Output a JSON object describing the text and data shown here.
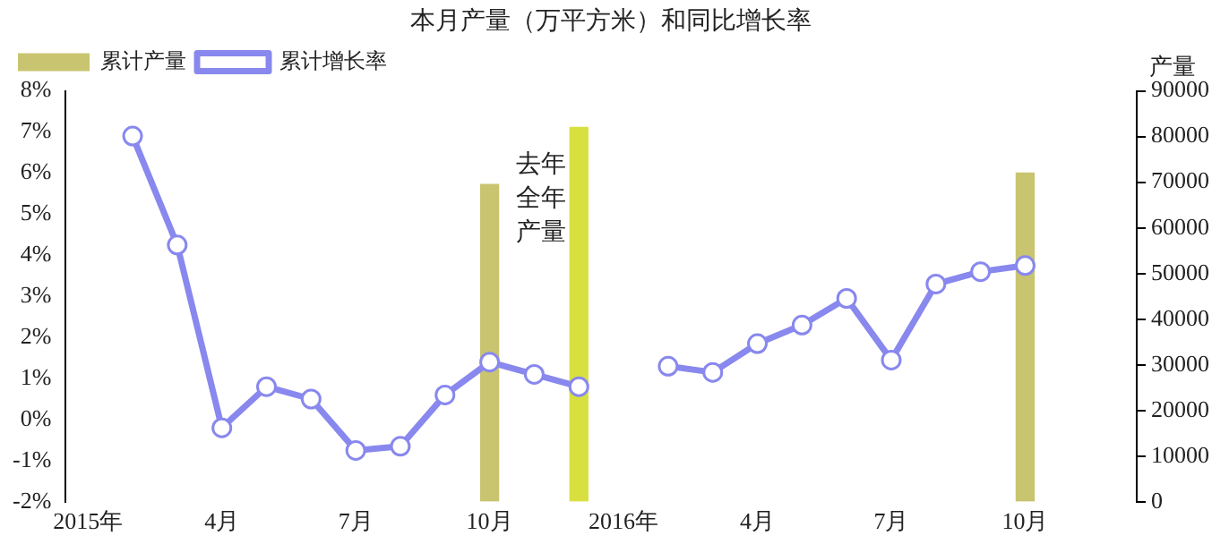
{
  "chart_data": {
    "type": "bar",
    "title": "本月产量（万平方米）和同比增长率",
    "y2label": "产量",
    "categories": [
      "2015年",
      null,
      null,
      "4月",
      null,
      null,
      "7月",
      null,
      null,
      "10月",
      null,
      null,
      "2016年",
      null,
      null,
      "4月",
      null,
      null,
      "7月",
      null,
      null,
      "10月",
      null,
      null
    ],
    "series": [
      {
        "name": "累计产量",
        "axis": "y2",
        "color": "#c8c470",
        "values": [
          null,
          null,
          null,
          null,
          null,
          null,
          null,
          null,
          null,
          69500,
          null,
          null,
          null,
          null,
          null,
          null,
          null,
          null,
          null,
          null,
          null,
          72000,
          null,
          null
        ]
      },
      {
        "axis": "y2",
        "color": "#d8e040",
        "values": [
          null,
          null,
          null,
          null,
          null,
          null,
          null,
          null,
          null,
          null,
          null,
          82000,
          null,
          null,
          null,
          null,
          null,
          null,
          null,
          null,
          null,
          null,
          null,
          null
        ]
      },
      {
        "name": "累计增长率",
        "type": "line",
        "axis": "y",
        "color": "#8888ee",
        "values": [
          null,
          6.9,
          4.25,
          -0.2,
          0.8,
          0.5,
          -0.75,
          -0.65,
          0.6,
          1.4,
          1.1,
          0.8,
          null,
          1.3,
          1.15,
          1.85,
          2.3,
          2.95,
          1.45,
          3.3,
          3.6,
          3.75,
          null,
          null
        ]
      }
    ],
    "ylim": [
      -2,
      8
    ],
    "yticks": [
      {
        "value": -2,
        "label": "-2%"
      },
      {
        "value": -1,
        "label": "-1%"
      },
      {
        "value": 0,
        "label": "0%"
      },
      {
        "value": 1,
        "label": "1%"
      },
      {
        "value": 2,
        "label": "2%"
      },
      {
        "value": 3,
        "label": "3%"
      },
      {
        "value": 4,
        "label": "4%"
      },
      {
        "value": 5,
        "label": "5%"
      },
      {
        "value": 6,
        "label": "6%"
      },
      {
        "value": 7,
        "label": "7%"
      },
      {
        "value": 8,
        "label": "8%"
      }
    ],
    "y2lim": [
      0,
      90000
    ],
    "y2ticks": [
      0,
      10000,
      20000,
      30000,
      40000,
      50000,
      60000,
      70000,
      80000,
      90000
    ],
    "annotations": [
      "去年全年产量"
    ],
    "grid": false,
    "legend": "top left",
    "marker": "circle",
    "line_style": "solid"
  }
}
